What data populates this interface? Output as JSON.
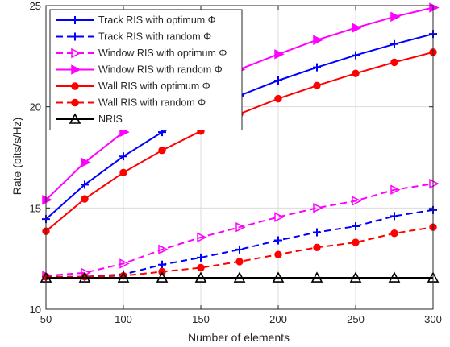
{
  "chart_data": {
    "type": "line",
    "xlabel": "Number of elements",
    "ylabel": "Rate (bits/s/Hz)",
    "xlim": [
      50,
      300
    ],
    "ylim": [
      10,
      25
    ],
    "xticks": [
      50,
      100,
      150,
      200,
      250,
      300
    ],
    "yticks": [
      10,
      15,
      20,
      25
    ],
    "grid": true,
    "legend_position": "top-left",
    "x": [
      50,
      75,
      100,
      125,
      150,
      175,
      200,
      225,
      250,
      275,
      300
    ],
    "series": [
      {
        "name": "Track RIS with optimum Φ",
        "color": "#0000ff",
        "dash": "solid",
        "marker": "plus",
        "values": [
          14.45,
          16.15,
          17.55,
          18.75,
          19.75,
          20.55,
          21.3,
          21.95,
          22.55,
          23.1,
          23.6
        ]
      },
      {
        "name": "Track RIS with random Φ",
        "color": "#0000ff",
        "dash": "dashed",
        "marker": "plus",
        "values": [
          11.6,
          11.6,
          11.72,
          12.2,
          12.55,
          12.95,
          13.4,
          13.8,
          14.1,
          14.6,
          14.9
        ]
      },
      {
        "name": "Window RIS with optimum Φ",
        "color": "#ff00ff",
        "dash": "dashed",
        "marker": "triangle-right",
        "values": [
          11.65,
          11.8,
          12.25,
          12.95,
          13.55,
          14.05,
          14.55,
          15.0,
          15.35,
          15.9,
          16.2
        ]
      },
      {
        "name": "Window RIS with random Φ",
        "color": "#ff00ff",
        "dash": "solid",
        "marker": "triangle-right",
        "values": [
          15.4,
          17.25,
          18.75,
          19.95,
          21.0,
          21.85,
          22.6,
          23.3,
          23.9,
          24.45,
          24.9
        ]
      },
      {
        "name": "Wall RIS with optimum Φ",
        "color": "#ff0000",
        "dash": "solid",
        "marker": "circle",
        "values": [
          13.85,
          15.45,
          16.75,
          17.85,
          18.8,
          19.65,
          20.4,
          21.05,
          21.65,
          22.2,
          22.7
        ]
      },
      {
        "name": "Wall RIS with random Φ",
        "color": "#ff0000",
        "dash": "dashed",
        "marker": "circle",
        "values": [
          11.6,
          11.6,
          11.65,
          11.85,
          12.05,
          12.35,
          12.7,
          13.05,
          13.3,
          13.75,
          14.05
        ]
      },
      {
        "name": "NRIS",
        "color": "#000000",
        "dash": "solid",
        "marker": "triangle-up",
        "values": [
          11.55,
          11.55,
          11.55,
          11.55,
          11.55,
          11.55,
          11.55,
          11.55,
          11.55,
          11.55,
          11.55
        ]
      }
    ]
  }
}
